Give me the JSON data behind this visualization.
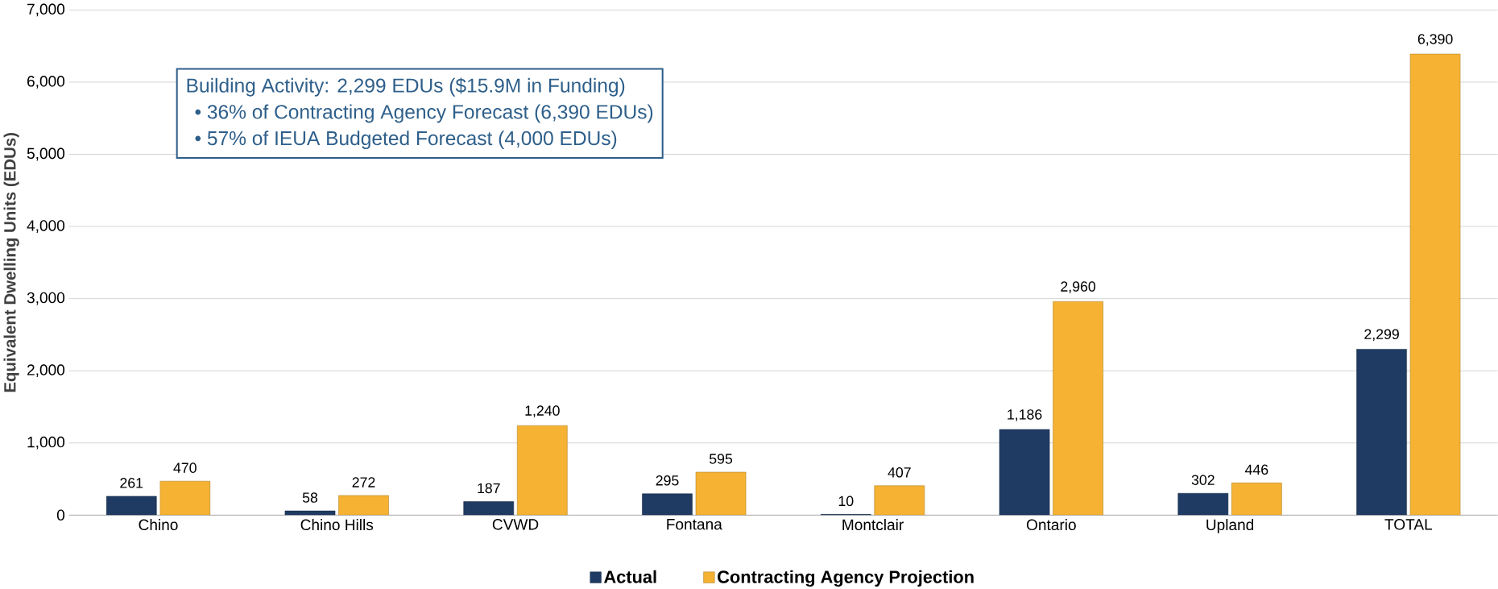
{
  "chart_data": {
    "type": "bar",
    "ylabel": "Equivalent Dwelling Units (EDUs)",
    "categories": [
      "Chino",
      "Chino Hills",
      "CVWD",
      "Fontana",
      "Montclair",
      "Ontario",
      "Upland",
      "TOTAL"
    ],
    "series": [
      {
        "name": "Actual",
        "color": "#1f3b63",
        "values": [
          261,
          58,
          187,
          295,
          10,
          1186,
          302,
          2299
        ],
        "value_labels": [
          "261",
          "58",
          "187",
          "295",
          "10",
          "1,186",
          "302",
          "2,299"
        ]
      },
      {
        "name": "Contracting Agency Projection",
        "color": "#f5b233",
        "values": [
          470,
          272,
          1240,
          595,
          407,
          2960,
          446,
          6390
        ],
        "value_labels": [
          "470",
          "272",
          "1,240",
          "595",
          "407",
          "2,960",
          "446",
          "6,390"
        ]
      }
    ],
    "ylim": [
      0,
      7000
    ],
    "yticks": [
      {
        "value": 0,
        "label": "0"
      },
      {
        "value": 1000,
        "label": "1,000"
      },
      {
        "value": 2000,
        "label": "2,000"
      },
      {
        "value": 3000,
        "label": "3,000"
      },
      {
        "value": 4000,
        "label": "4,000"
      },
      {
        "value": 5000,
        "label": "5,000"
      },
      {
        "value": 6000,
        "label": "6,000"
      },
      {
        "value": 7000,
        "label": "7,000"
      }
    ],
    "grid": "y",
    "legend": "bottom",
    "annotations": [
      "Building Activity: 2,299 EDUs ($15.9M in Funding)",
      "• 36% of Contracting Agency Forecast (6,390 EDUs)",
      "• 57% of IEUA Budgeted Forecast (4,000 EDUs)"
    ]
  }
}
